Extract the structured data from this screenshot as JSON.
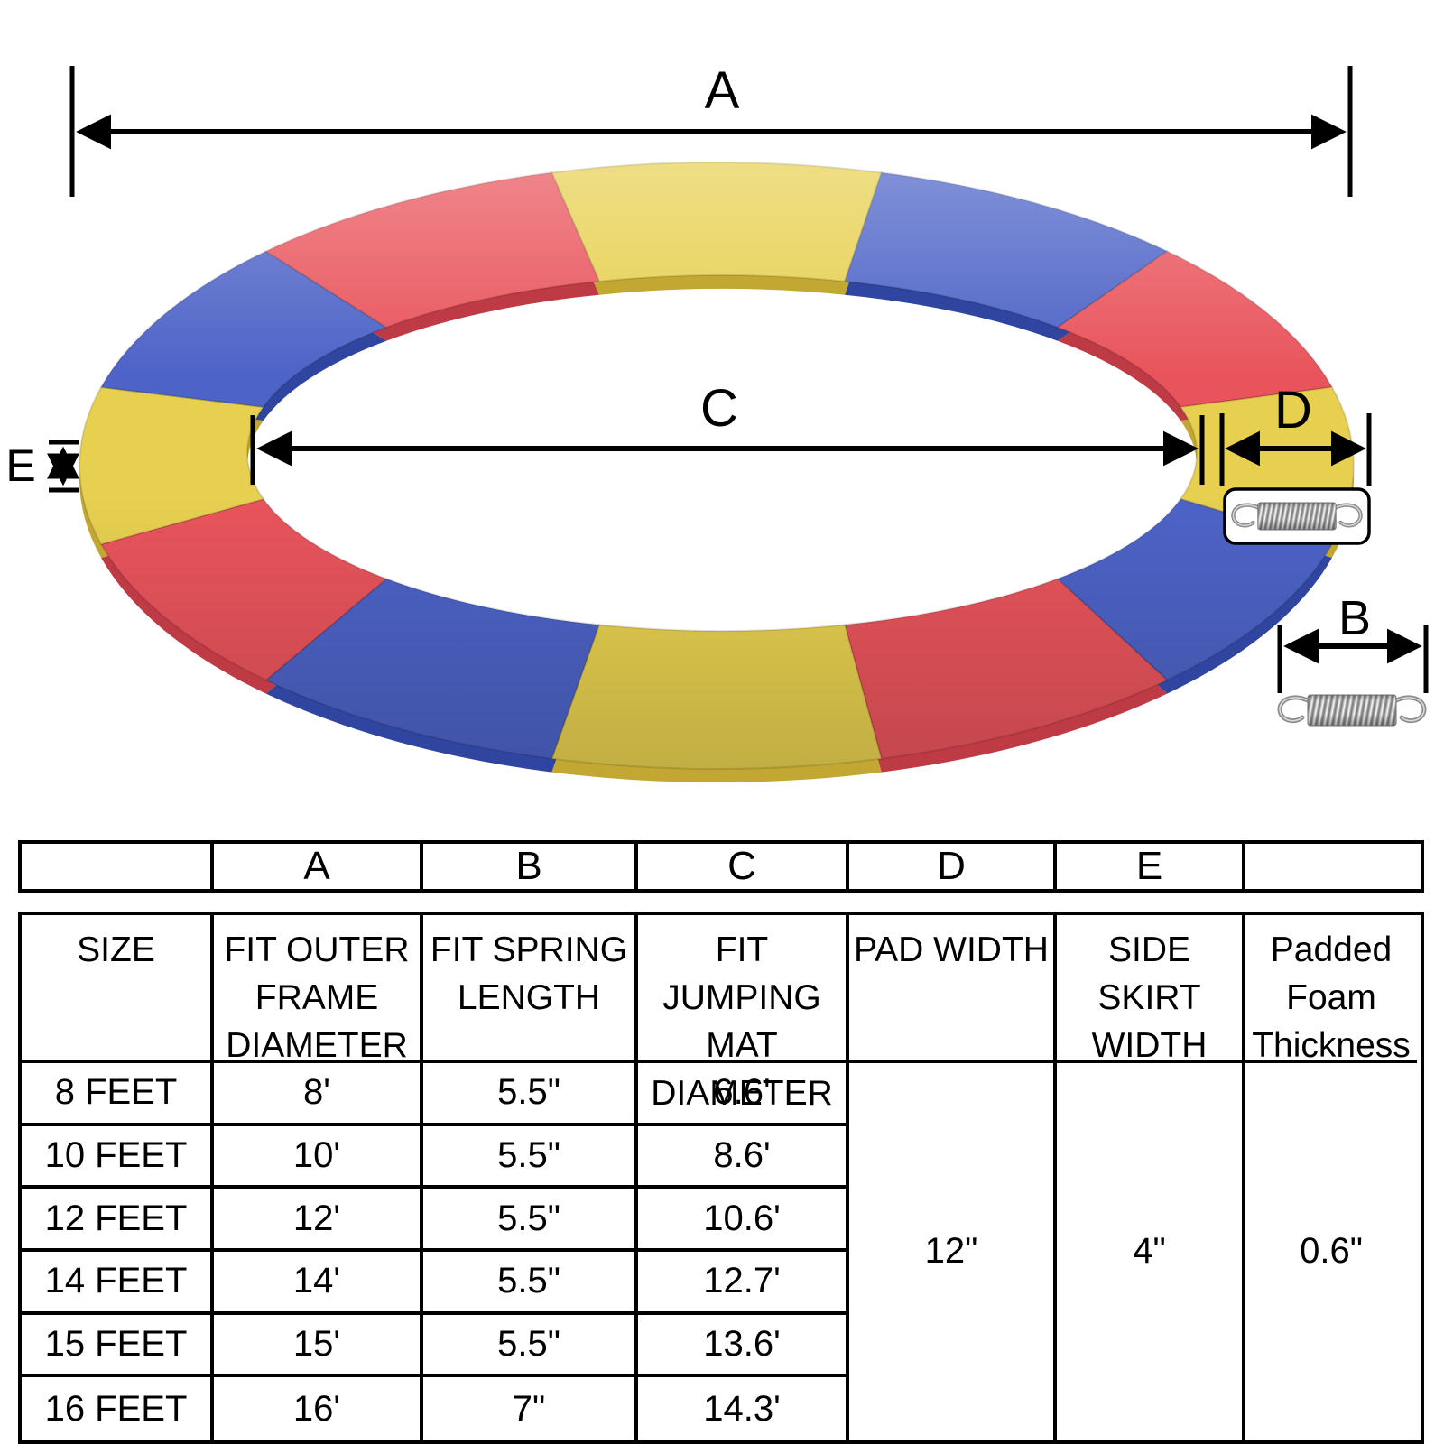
{
  "diagram": {
    "labels": {
      "a": "A",
      "b": "B",
      "c": "C",
      "d": "D",
      "e": "E"
    },
    "ring_colors": {
      "yellow": {
        "top": "#E7D050",
        "side": "#C2A832"
      },
      "blue": {
        "top": "#4D63C7",
        "side": "#2F45A0"
      },
      "red": {
        "top": "#E9545C",
        "side": "#BE3A45"
      }
    },
    "segments": [
      "yellow",
      "blue",
      "red",
      "yellow",
      "blue",
      "red",
      "yellow",
      "blue",
      "red",
      "yellow",
      "blue",
      "red"
    ],
    "spring_color": "#8d8d8d"
  },
  "table": {
    "letters": [
      "",
      "A",
      "B",
      "C",
      "D",
      "E",
      ""
    ],
    "headers": [
      "SIZE",
      "FIT OUTER\nFRAME\nDIAMETER",
      "FIT SPRING\nLENGTH",
      "FIT JUMPING\nMAT\nDIAMETER",
      "PAD WIDTH",
      "SIDE SKIRT\nWIDTH",
      "Padded\nFoam\nThickness"
    ],
    "rows": [
      {
        "size": "8 FEET",
        "a": "8'",
        "b": "5.5\"",
        "c": "6.6'"
      },
      {
        "size": "10 FEET",
        "a": "10'",
        "b": "5.5\"",
        "c": "8.6'"
      },
      {
        "size": "12 FEET",
        "a": "12'",
        "b": "5.5\"",
        "c": "10.6'"
      },
      {
        "size": "14 FEET",
        "a": "14'",
        "b": "5.5\"",
        "c": "12.7'"
      },
      {
        "size": "15 FEET",
        "a": "15'",
        "b": "5.5\"",
        "c": "13.6'"
      },
      {
        "size": "16 FEET",
        "a": "16'",
        "b": "7\"",
        "c": "14.3'"
      }
    ],
    "merged": {
      "pad_width": "12\"",
      "side_skirt_width": "4\"",
      "padded_foam_thickness": "0.6\""
    }
  }
}
